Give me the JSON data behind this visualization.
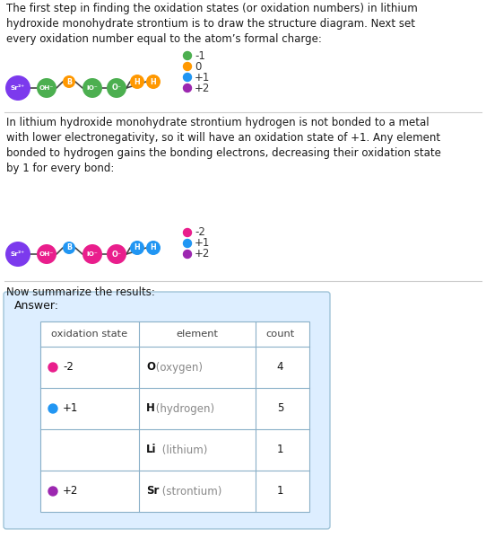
{
  "title_text1": "The first step in finding the oxidation states (or oxidation numbers) in lithium\nhydroxide monohydrate strontium is to draw the structure diagram. Next set\nevery oxidation number equal to the atom’s formal charge:",
  "title_text2": "In lithium hydroxide monohydrate strontium hydrogen is not bonded to a metal\nwith lower electronegativity, so it will have an oxidation state of +1. Any element\nbonded to hydrogen gains the bonding electrons, decreasing their oxidation state\nby 1 for every bond:",
  "title_text3": "Now summarize the results:",
  "diagram1_legend": [
    {
      "color": "#4caf50",
      "label": "-1"
    },
    {
      "color": "#ff9800",
      "label": "0"
    },
    {
      "color": "#2196f3",
      "label": "+1"
    },
    {
      "color": "#9c27b0",
      "label": "+2"
    }
  ],
  "diagram2_legend": [
    {
      "color": "#e91e8c",
      "label": "-2"
    },
    {
      "color": "#2196f3",
      "label": "+1"
    },
    {
      "color": "#9c27b0",
      "label": "+2"
    }
  ],
  "bg_color": "#ffffff",
  "text_color": "#1a1a1a",
  "sep_color": "#cccccc",
  "table_bg": "#ddeeff",
  "table_border": "#a0c4d8",
  "inner_table_bg": "#ffffff",
  "inner_table_border": "#8ab0c8",
  "answer_rows": [
    {
      "ox": "-2",
      "ox_color": "#e91e8c",
      "element_bold": "O",
      "element_rest": " (oxygen)",
      "count": "4"
    },
    {
      "ox": "+1",
      "ox_color": "#2196f3",
      "element_bold": "H",
      "element_rest": " (hydrogen)",
      "count": "5"
    },
    {
      "ox": null,
      "ox_color": null,
      "element_bold": "Li",
      "element_rest": " (lithium)",
      "count": "1"
    },
    {
      "ox": "+2",
      "ox_color": "#9c27b0",
      "element_bold": "Sr",
      "element_rest": " (strontium)",
      "count": "1"
    }
  ]
}
